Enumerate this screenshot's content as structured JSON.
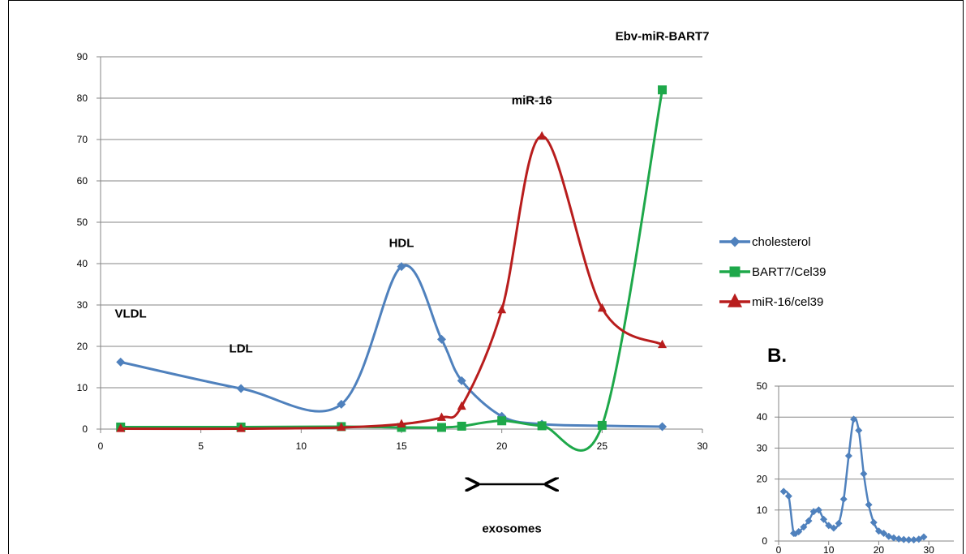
{
  "chart_data": [
    {
      "type": "line",
      "title": "",
      "xlabel": "",
      "ylabel": "",
      "xlim": [
        0,
        30
      ],
      "ylim": [
        0,
        90
      ],
      "xticks": [
        "0",
        "5",
        "10",
        "15",
        "20",
        "25",
        "30"
      ],
      "yticks": [
        "0",
        "10",
        "20",
        "30",
        "40",
        "50",
        "60",
        "70",
        "80",
        "90"
      ],
      "grid": "horizontal",
      "legend": "right",
      "series": [
        {
          "name": "cholesterol",
          "color": "#4f81bd",
          "marker": "diamond",
          "x": [
            1,
            7,
            12,
            15,
            17,
            18,
            20,
            22,
            25,
            28
          ],
          "y": [
            16.2,
            9.8,
            6,
            39.3,
            21.7,
            11.7,
            3.1,
            1.2,
            0.8,
            0.6
          ]
        },
        {
          "name": "BART7/Cel39",
          "color": "#1ea84a",
          "marker": "square",
          "x": [
            1,
            7,
            12,
            15,
            17,
            18,
            20,
            22,
            25,
            28
          ],
          "y": [
            0.5,
            0.5,
            0.6,
            0.4,
            0.4,
            0.7,
            2.0,
            0.8,
            0.9,
            82
          ]
        },
        {
          "name": "miR-16/cel39",
          "color": "#b81d1d",
          "marker": "triangle",
          "x": [
            1,
            7,
            12,
            15,
            17,
            18,
            20,
            22,
            25,
            28
          ],
          "y": [
            0.1,
            0.1,
            0.4,
            1.2,
            2.8,
            5.5,
            28.8,
            70.8,
            29.2,
            20.4
          ]
        }
      ],
      "annotations": [
        {
          "text": "VLDL",
          "x": 1.5,
          "y": 27
        },
        {
          "text": "LDL",
          "x": 7,
          "y": 18.5
        },
        {
          "text": "HDL",
          "x": 15,
          "y": 44
        },
        {
          "text": "miR-16",
          "x": 21.5,
          "y": 78.5
        },
        {
          "text": "Ebv-miR-BART7",
          "x": 28,
          "y": 94
        },
        {
          "text": "exosomes",
          "x": 20.5,
          "y": -25
        }
      ]
    },
    {
      "type": "line",
      "label": "B.",
      "title": "",
      "xlim": [
        0,
        35
      ],
      "ylim": [
        0,
        50
      ],
      "xticks": [
        "0",
        "10",
        "20",
        "30"
      ],
      "yticks": [
        "0",
        "10",
        "20",
        "30",
        "40",
        "50"
      ],
      "grid": "horizontal",
      "series": [
        {
          "color": "#4f81bd",
          "marker": "diamond",
          "x": [
            1,
            2,
            3,
            4,
            5,
            6,
            7,
            8,
            9,
            10,
            11,
            12,
            13,
            14,
            15,
            16,
            17,
            18,
            19,
            20,
            21,
            22,
            23,
            24,
            25,
            26,
            27,
            28,
            29
          ],
          "y": [
            16,
            14.5,
            2.5,
            3,
            4.5,
            6.5,
            9.5,
            10,
            7,
            5,
            4.2,
            5.7,
            13.5,
            27.5,
            39.3,
            35.7,
            21.7,
            11.7,
            6,
            3.2,
            2.5,
            1.5,
            1,
            0.7,
            0.5,
            0.4,
            0.4,
            0.6,
            1.3
          ]
        }
      ]
    }
  ]
}
